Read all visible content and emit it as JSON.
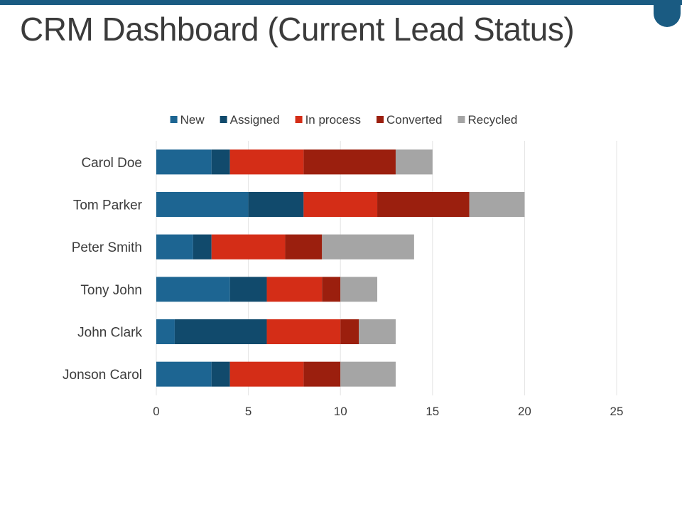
{
  "slide": {
    "title": "CRM Dashboard (Current Lead Status)"
  },
  "colors": {
    "brand": "#1a5b82",
    "New": "#1d6592",
    "Assigned": "#114a6c",
    "In process": "#d42d17",
    "Converted": "#9b1f0e",
    "Recycled": "#a5a5a5",
    "gridline": "#e3e3e3",
    "text": "#3b3b3b"
  },
  "chart_data": {
    "type": "bar",
    "orientation": "horizontal",
    "stacked": true,
    "title": "",
    "xlabel": "",
    "ylabel": "",
    "xlim": [
      0,
      25
    ],
    "x_ticks": [
      0,
      5,
      10,
      15,
      20,
      25
    ],
    "grid": true,
    "legend_position": "top",
    "categories": [
      "Carol Doe",
      "Tom Parker",
      "Peter Smith",
      "Tony John",
      "John Clark",
      "Jonson Carol"
    ],
    "series": [
      {
        "name": "New",
        "values": [
          3,
          5,
          2,
          4,
          1,
          3
        ]
      },
      {
        "name": "Assigned",
        "values": [
          1,
          3,
          1,
          2,
          5,
          1
        ]
      },
      {
        "name": "In process",
        "values": [
          4,
          4,
          4,
          3,
          4,
          4
        ]
      },
      {
        "name": "Converted",
        "values": [
          5,
          5,
          2,
          1,
          1,
          2
        ]
      },
      {
        "name": "Recycled",
        "values": [
          2,
          3,
          5,
          2,
          2,
          3
        ]
      }
    ]
  }
}
